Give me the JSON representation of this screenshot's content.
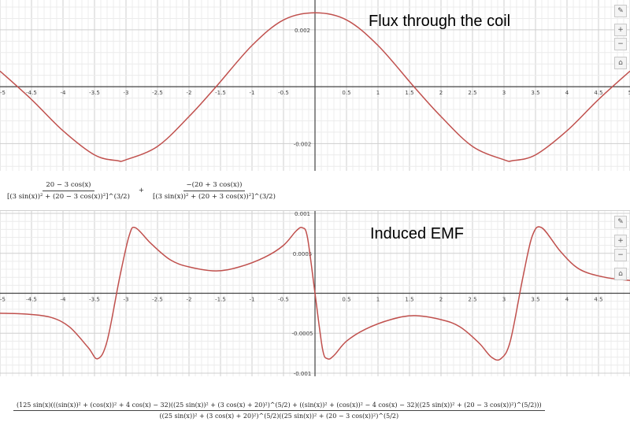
{
  "icons": [
    "wrench-icon",
    "zoom-in-icon",
    "zoom-out-icon",
    "home-icon"
  ],
  "toolbar": {
    "wrench": "✎",
    "zoom_in": "+",
    "zoom_out": "−",
    "home": "⌂"
  },
  "chart_data": [
    {
      "type": "line",
      "title": "Flux through the coil",
      "xlim": [
        -5,
        5
      ],
      "ylim": [
        -0.00296,
        0.00305
      ],
      "x_ticks": [
        -5,
        -4.5,
        -4,
        -3.5,
        -3,
        -2.5,
        -2,
        -1.5,
        -1,
        -0.5,
        0.5,
        1,
        1.5,
        2,
        2.5,
        3,
        3.5,
        4,
        4.5,
        5
      ],
      "x_tick_labels": [
        "-5",
        "-4.5",
        "-4",
        "-3.5",
        "-3",
        "-2.5",
        "-2",
        "-1.5",
        "-1",
        "-0.5",
        "0.5",
        "1",
        "1.5",
        "2",
        "2.5",
        "3",
        "3.5",
        "4",
        "4.5",
        "5"
      ],
      "y_ticks": [
        0.002,
        -0.002
      ],
      "y_tick_labels": [
        "0.002",
        "-0.002"
      ],
      "grid": true,
      "color": "#c0504d",
      "series": [
        {
          "x": [
            -5,
            -4.5,
            -4,
            -3.5,
            -3.14,
            -3,
            -2.5,
            -2,
            -1.57,
            -1,
            -0.5,
            0,
            0.5,
            1,
            1.57,
            2,
            2.5,
            3,
            3.14,
            3.5,
            4,
            4.5,
            5
          ],
          "y": [
            0.00055,
            -0.00045,
            -0.00155,
            -0.0024,
            -0.0026,
            -0.00257,
            -0.0021,
            -0.00105,
            0,
            0.00145,
            0.00235,
            0.0026,
            0.00235,
            0.00145,
            0,
            -0.00105,
            -0.0021,
            -0.00257,
            -0.0026,
            -0.0024,
            -0.00155,
            -0.00045,
            0.00055
          ]
        }
      ]
    },
    {
      "type": "line",
      "title": "Induced EMF",
      "xlim": [
        -5,
        5
      ],
      "ylim": [
        -0.00104,
        0.00103
      ],
      "x_ticks": [
        -5,
        -4.5,
        -4,
        -3.5,
        -3,
        -2.5,
        -2,
        -1.5,
        -1,
        -0.5,
        0.5,
        1,
        1.5,
        2,
        2.5,
        3,
        3.5,
        4,
        4.5
      ],
      "x_tick_labels": [
        "-5",
        "-4.5",
        "-4",
        "-3.5",
        "-3",
        "-2.5",
        "-2",
        "-1.5",
        "-1",
        "-0.5",
        "0.5",
        "1",
        "1.5",
        "2",
        "2.5",
        "3",
        "3.5",
        "4",
        "4.5"
      ],
      "y_ticks": [
        0.001,
        0.0005,
        -0.0005,
        -0.001
      ],
      "y_tick_labels": [
        "0.001",
        "0.0005",
        "-0.0005",
        "-0.001"
      ],
      "grid": true,
      "color": "#c0504d",
      "series": [
        {
          "x": [
            -5,
            -4.6,
            -4.2,
            -3.9,
            -3.6,
            -3.45,
            -3.3,
            -3.1,
            -2.95,
            -2.85,
            -2.6,
            -2.3,
            -2,
            -1.57,
            -1.2,
            -0.8,
            -0.5,
            -0.3,
            -0.2,
            -0.12,
            0,
            0.12,
            0.2,
            0.3,
            0.5,
            0.8,
            1.2,
            1.57,
            2,
            2.3,
            2.6,
            2.8,
            2.95,
            3.1,
            3.3,
            3.45,
            3.6,
            3.9,
            4.2,
            4.6,
            5
          ],
          "y": [
            -0.00025,
            -0.00026,
            -0.0003,
            -0.00042,
            -0.00068,
            -0.00082,
            -0.0006,
            0.0002,
            0.00072,
            0.00082,
            0.00062,
            0.00042,
            0.00033,
            0.00028,
            0.00033,
            0.00045,
            0.0006,
            0.00078,
            0.00082,
            0.0007,
            0,
            -0.0007,
            -0.00082,
            -0.00078,
            -0.0006,
            -0.00045,
            -0.00033,
            -0.00028,
            -0.00033,
            -0.00042,
            -0.00062,
            -0.0008,
            -0.00082,
            -0.0006,
            0.0002,
            0.00072,
            0.00082,
            0.00052,
            0.0003,
            0.0002,
            0.00016
          ]
        }
      ]
    }
  ],
  "formula1": {
    "term1_num": "20 − 3 cos(x)",
    "term1_den": "[(3 sin(x))² + (20 − 3 cos(x))²]^(3/2)",
    "plus": "+",
    "term2_num": "−(20 + 3 cos(x))",
    "term2_den": "[(3 sin(x))² + (20 + 3 cos(x))²]^(3/2)"
  },
  "formula2": {
    "num": "(125 sin(x)(((sin(x))² + (cos(x))² + 4 cos(x) − 32)((25 sin(x))² + (3 cos(x) + 20)²)^(5/2) + ((sin(x))² + (cos(x))² − 4 cos(x) − 32)((25 sin(x))² + (20 − 3 cos(x))²)^(5/2)))",
    "den": "((25 sin(x))² + (3 cos(x) + 20)²)^(5/2)((25 sin(x))² + (20 − 3 cos(x))²)^(5/2)"
  }
}
